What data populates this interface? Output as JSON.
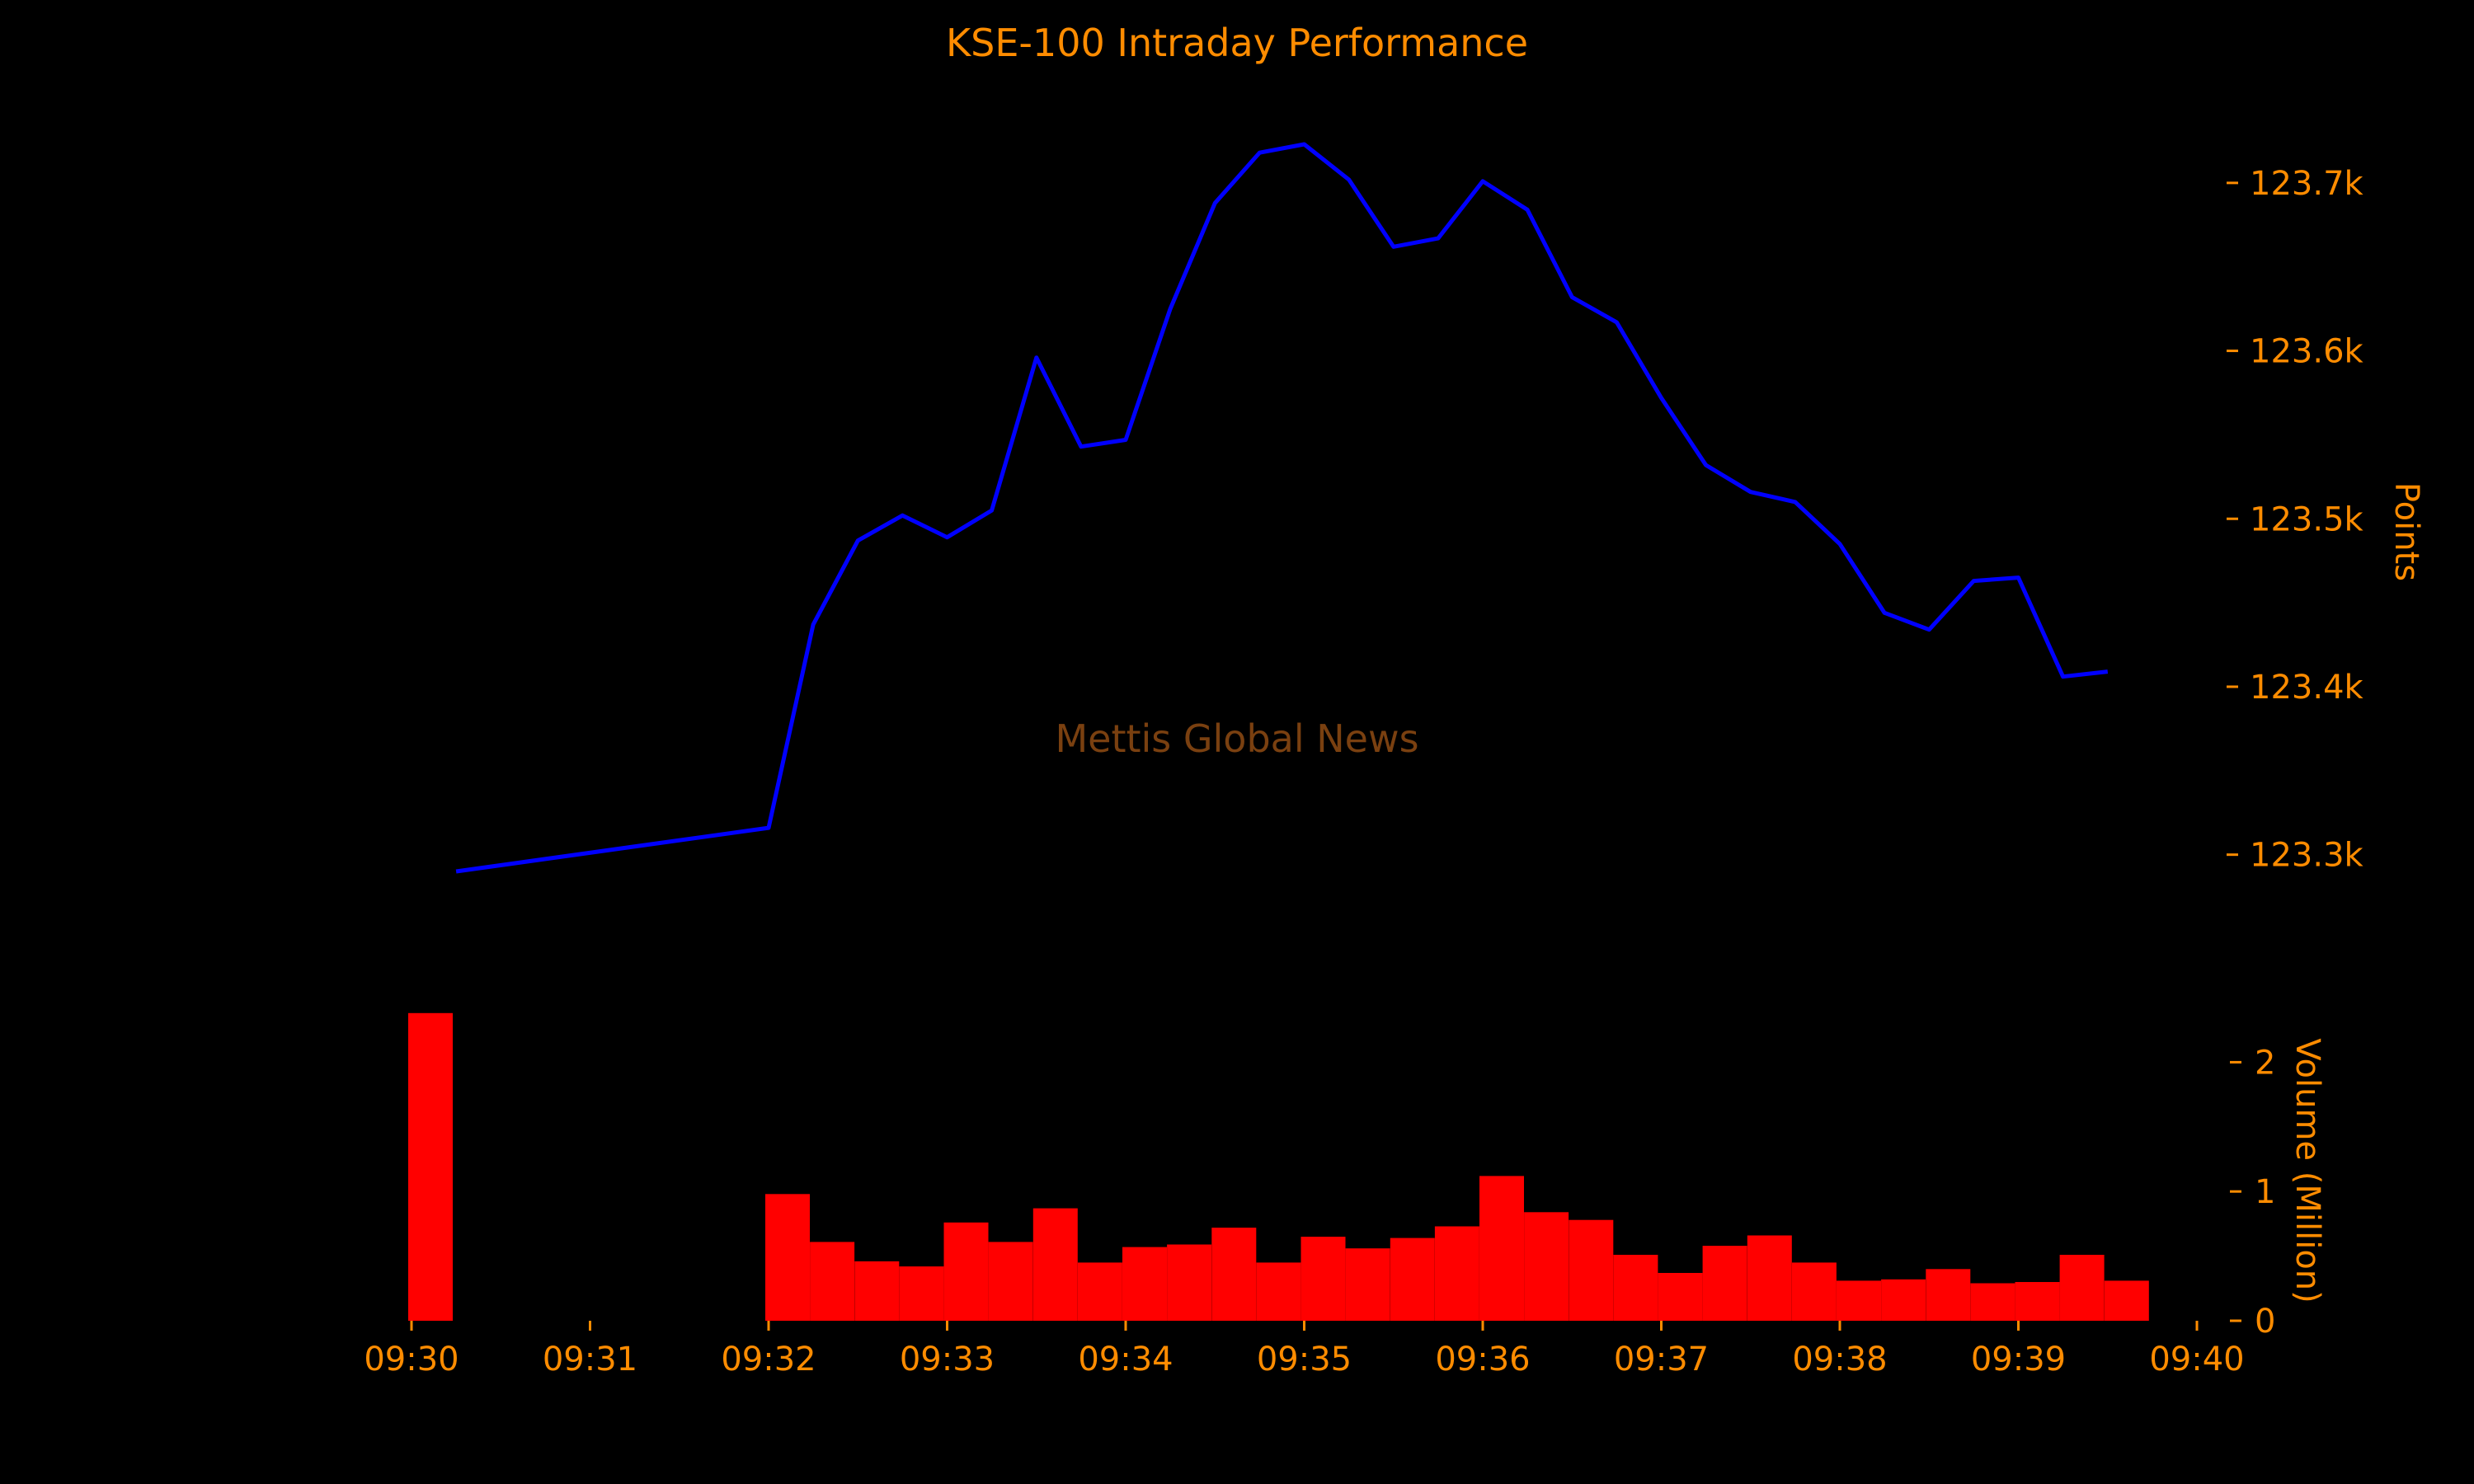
{
  "chart_data": {
    "type": "line",
    "title": "KSE-100 Intraday Performance",
    "watermark": "Mettis Global News",
    "colors": {
      "background": "#000000",
      "text": "#FF8C00",
      "line": "#0000FF",
      "bars": "#FF0000",
      "watermark": "#7A4010"
    },
    "x_axis": {
      "tick_labels": [
        "09:30",
        "09:31",
        "09:32",
        "09:33",
        "09:34",
        "09:35",
        "09:36",
        "09:37",
        "09:38",
        "09:39",
        "09:40"
      ],
      "range": [
        "09:30",
        "09:40"
      ]
    },
    "price_axis": {
      "label": "Points",
      "position": "right",
      "tick_values": [
        123300,
        123400,
        123500,
        123600,
        123700
      ],
      "tick_labels": [
        "123.3k",
        "123.4k",
        "123.5k",
        "123.6k",
        "123.7k"
      ],
      "ylim": [
        123210,
        123750
      ]
    },
    "volume_axis": {
      "label": "Volume (Million)",
      "position": "right",
      "tick_values": [
        0,
        1,
        2
      ],
      "tick_labels": [
        "0",
        "1",
        "2"
      ],
      "ylim": [
        0,
        2.5
      ]
    },
    "price_series": {
      "x": [
        "09:30:15",
        "09:32:00",
        "09:32:15",
        "09:32:30",
        "09:32:45",
        "09:33:00",
        "09:33:15",
        "09:33:30",
        "09:33:45",
        "09:34:00",
        "09:34:15",
        "09:34:30",
        "09:34:45",
        "09:35:00",
        "09:35:15",
        "09:35:30",
        "09:35:45",
        "09:36:00",
        "09:36:15",
        "09:36:30",
        "09:36:45",
        "09:37:00",
        "09:37:15",
        "09:37:30",
        "09:37:45",
        "09:38:00",
        "09:38:15",
        "09:38:30",
        "09:38:45",
        "09:39:00",
        "09:39:15",
        "09:39:30"
      ],
      "values": [
        123290,
        123316,
        123437,
        123487,
        123502,
        123489,
        123505,
        123596,
        123543,
        123547,
        123625,
        123688,
        123718,
        123723,
        123702,
        123662,
        123667,
        123701,
        123684,
        123632,
        123617,
        123572,
        123532,
        123516,
        123510,
        123485,
        123444,
        123434,
        123463,
        123465,
        123406,
        123409
      ]
    },
    "volume_series": {
      "x": [
        "09:30:00",
        "09:32:00",
        "09:32:15",
        "09:32:30",
        "09:32:45",
        "09:33:00",
        "09:33:15",
        "09:33:30",
        "09:33:45",
        "09:34:00",
        "09:34:15",
        "09:34:30",
        "09:34:45",
        "09:35:00",
        "09:35:15",
        "09:35:30",
        "09:35:45",
        "09:36:00",
        "09:36:15",
        "09:36:30",
        "09:36:45",
        "09:37:00",
        "09:37:15",
        "09:37:30",
        "09:37:45",
        "09:38:00",
        "09:38:15",
        "09:38:30",
        "09:38:45",
        "09:39:00",
        "09:39:15",
        "09:39:30"
      ],
      "values": [
        2.38,
        0.98,
        0.61,
        0.46,
        0.42,
        0.76,
        0.61,
        0.87,
        0.45,
        0.57,
        0.59,
        0.72,
        0.45,
        0.65,
        0.56,
        0.64,
        0.73,
        1.12,
        0.84,
        0.78,
        0.51,
        0.37,
        0.58,
        0.66,
        0.45,
        0.31,
        0.32,
        0.4,
        0.29,
        0.3,
        0.51,
        0.31
      ]
    }
  }
}
